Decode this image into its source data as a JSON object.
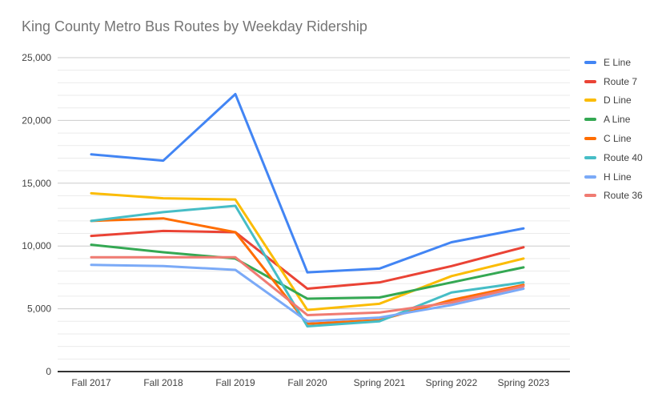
{
  "chart_data": {
    "type": "line",
    "title": "King County Metro Bus Routes by Weekday Ridership",
    "xlabel": "",
    "ylabel": "",
    "categories": [
      "Fall 2017",
      "Fall 2018",
      "Fall 2019",
      "Fall 2020",
      "Spring 2021",
      "Spring 2022",
      "Spring 2023"
    ],
    "series": [
      {
        "name": "E Line",
        "color": "#4285F4",
        "values": [
          17300,
          16800,
          22100,
          7900,
          8200,
          10300,
          11400
        ]
      },
      {
        "name": "Route 7",
        "color": "#EA4335",
        "values": [
          10800,
          11200,
          11100,
          6600,
          7100,
          8400,
          9900
        ]
      },
      {
        "name": "D Line",
        "color": "#FBBC04",
        "values": [
          14200,
          13800,
          13700,
          4900,
          5400,
          7600,
          9000
        ]
      },
      {
        "name": "A Line",
        "color": "#34A853",
        "values": [
          10100,
          9500,
          9000,
          5800,
          5900,
          7100,
          8300
        ]
      },
      {
        "name": "C Line",
        "color": "#FF6D01",
        "values": [
          12000,
          12200,
          11100,
          3800,
          4100,
          5700,
          6900
        ]
      },
      {
        "name": "Route 40",
        "color": "#46BDC6",
        "values": [
          12000,
          12700,
          13200,
          3600,
          4000,
          6300,
          7100
        ]
      },
      {
        "name": "H Line",
        "color": "#7BAAF7",
        "values": [
          8500,
          8400,
          8100,
          4000,
          4300,
          5300,
          6600
        ]
      },
      {
        "name": "Route 36",
        "color": "#F07B72",
        "values": [
          9100,
          9100,
          9100,
          4500,
          4700,
          5500,
          6800
        ]
      }
    ],
    "ylim": [
      0,
      25000
    ],
    "y_major_interval": 5000,
    "y_minor_interval": 1000,
    "y_tick_labels": [
      "0",
      "5,000",
      "10,000",
      "15,000",
      "20,000",
      "25,000"
    ],
    "grid": true,
    "legend_position": "right",
    "colors": {
      "title_text": "#757575",
      "axis_text": "#424242",
      "major_gridline": "#cccccc",
      "minor_gridline": "#ebebeb",
      "zero_axis": "#333333",
      "background": "#ffffff"
    }
  }
}
